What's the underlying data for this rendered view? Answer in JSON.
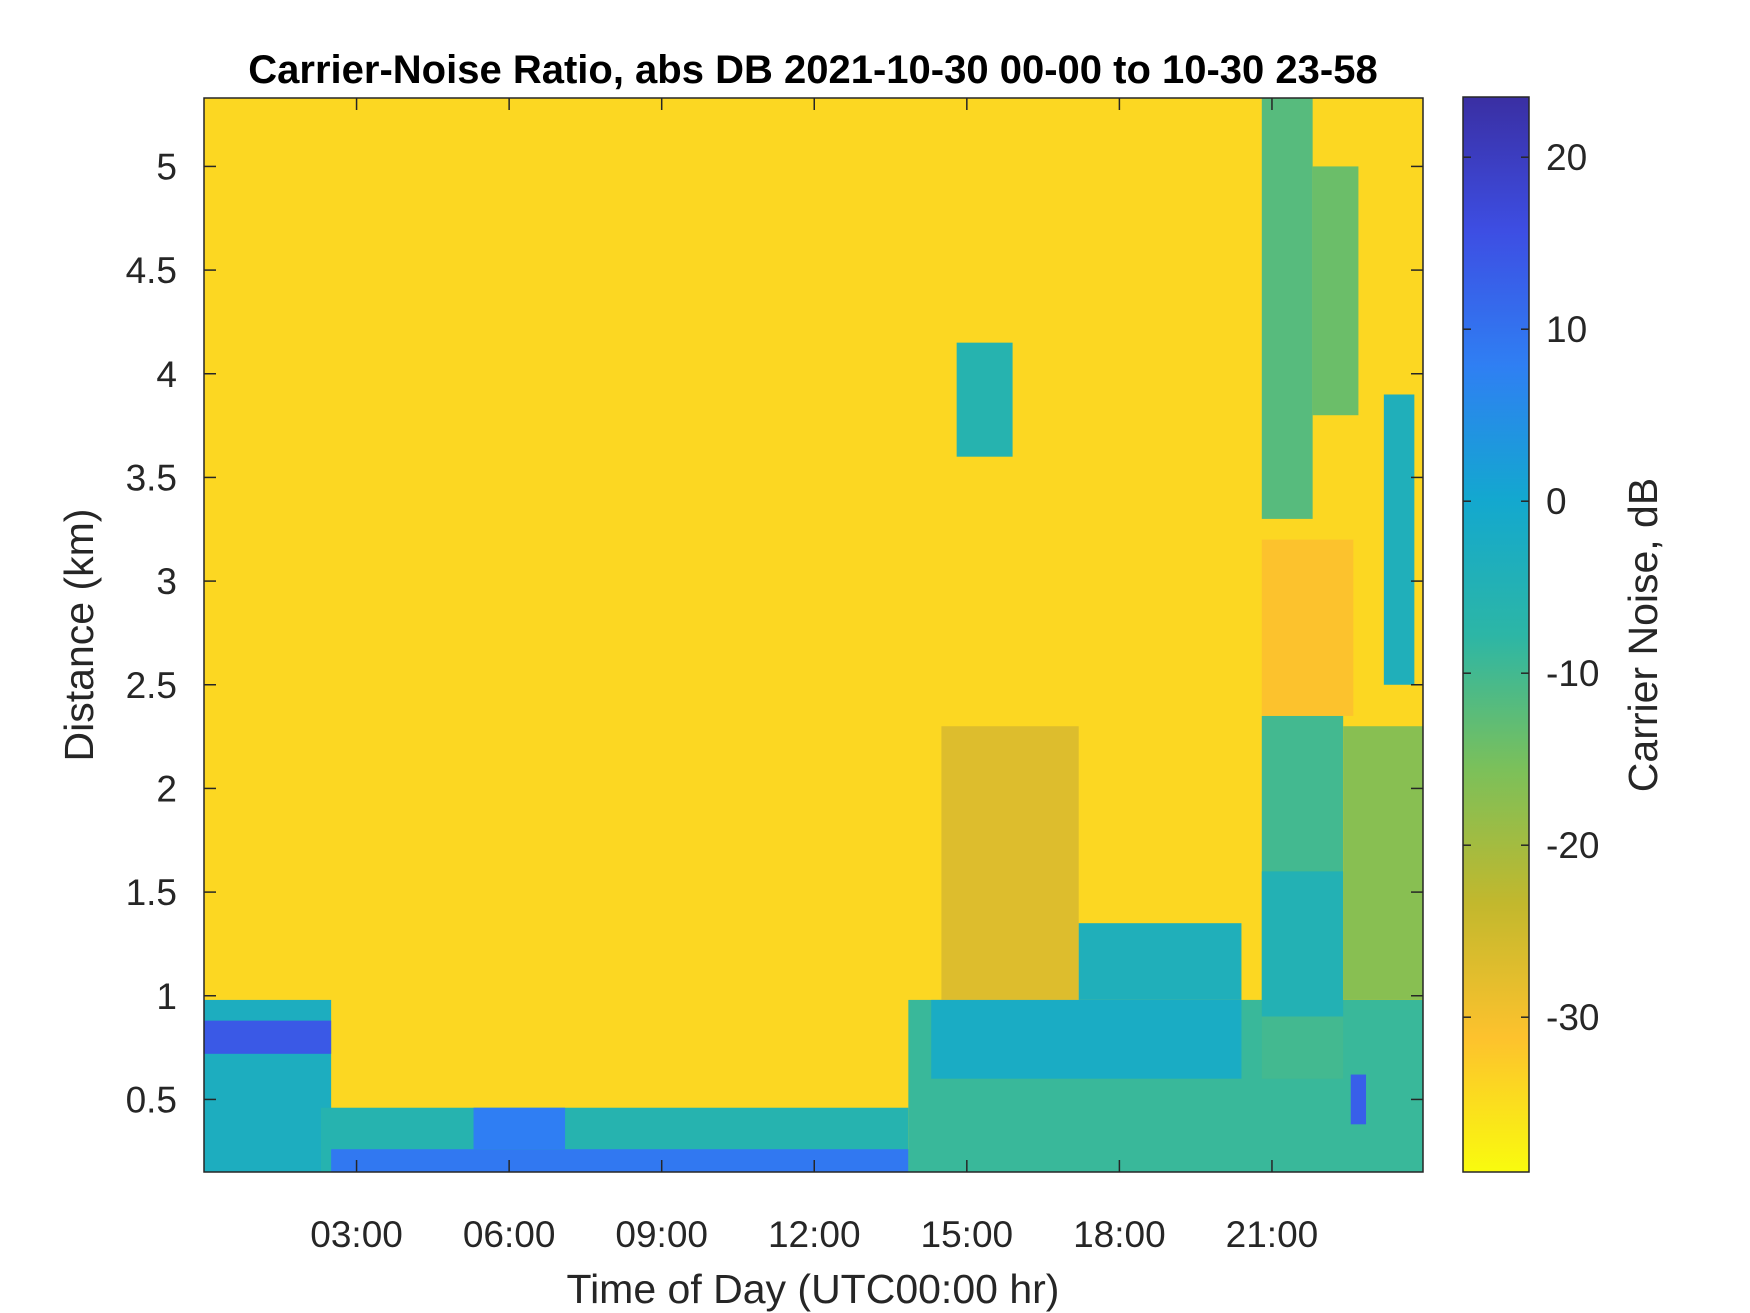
{
  "chart_data": {
    "type": "heatmap",
    "title": "Carrier-Noise Ratio, abs DB 2021-10-30 00-00 to 10-30 23-58",
    "xlabel": "Time of Day (UTC00:00 hr)",
    "ylabel": "Distance (km)",
    "colorbar_label": "Carrier Noise, dB",
    "xlim_hours": [
      0,
      23.97
    ],
    "ylim_km": [
      0.15,
      5.33
    ],
    "clim_db": [
      -39,
      23.5
    ],
    "x_ticks": [
      {
        "value": 3,
        "label": "03:00"
      },
      {
        "value": 6,
        "label": "06:00"
      },
      {
        "value": 9,
        "label": "09:00"
      },
      {
        "value": 12,
        "label": "12:00"
      },
      {
        "value": 15,
        "label": "15:00"
      },
      {
        "value": 18,
        "label": "18:00"
      },
      {
        "value": 21,
        "label": "21:00"
      }
    ],
    "y_ticks": [
      {
        "value": 0.5,
        "label": "0.5"
      },
      {
        "value": 1,
        "label": "1"
      },
      {
        "value": 1.5,
        "label": "1.5"
      },
      {
        "value": 2,
        "label": "2"
      },
      {
        "value": 2.5,
        "label": "2.5"
      },
      {
        "value": 3,
        "label": "3"
      },
      {
        "value": 3.5,
        "label": "3.5"
      },
      {
        "value": 4,
        "label": "4"
      },
      {
        "value": 4.5,
        "label": "4.5"
      },
      {
        "value": 5,
        "label": "5"
      }
    ],
    "colorbar_ticks": [
      {
        "value": 20,
        "label": "20"
      },
      {
        "value": 10,
        "label": "10"
      },
      {
        "value": 0,
        "label": "0"
      },
      {
        "value": -10,
        "label": "-10"
      },
      {
        "value": -20,
        "label": "-20"
      },
      {
        "value": -30,
        "label": "-30"
      }
    ],
    "colormap": "parula-reversed",
    "colormap_stops": [
      "#f9fb0e",
      "#fdc22d",
      "#c2b82d",
      "#7bc05a",
      "#2cb6a6",
      "#13a8cf",
      "#2f7ff3",
      "#3d4ee3",
      "#3a2fa3"
    ],
    "background_level_db": -34,
    "regions": [
      {
        "x": [
          0,
          2.5
        ],
        "y": [
          0.15,
          0.98
        ],
        "db": -3
      },
      {
        "x": [
          0,
          2.5
        ],
        "y": [
          0.72,
          0.88
        ],
        "db": 14
      },
      {
        "x": [
          2.3,
          13.85
        ],
        "y": [
          0.15,
          0.46
        ],
        "db": -6
      },
      {
        "x": [
          2.5,
          13.85
        ],
        "y": [
          0.15,
          0.26
        ],
        "db": 9
      },
      {
        "x": [
          5.3,
          7.1
        ],
        "y": [
          0.26,
          0.46
        ],
        "db": 8
      },
      {
        "x": [
          13.85,
          23.97
        ],
        "y": [
          0.15,
          0.98
        ],
        "db": -9
      },
      {
        "x": [
          14.5,
          17.2
        ],
        "y": [
          0.98,
          2.3
        ],
        "db": -27
      },
      {
        "x": [
          14.3,
          20.4
        ],
        "y": [
          0.6,
          0.98
        ],
        "db": -2
      },
      {
        "x": [
          17.2,
          20.4
        ],
        "y": [
          0.98,
          1.35
        ],
        "db": -4
      },
      {
        "x": [
          20.8,
          22.4
        ],
        "y": [
          0.6,
          2.35
        ],
        "db": -10
      },
      {
        "x": [
          20.8,
          22.4
        ],
        "y": [
          0.9,
          1.6
        ],
        "db": -5
      },
      {
        "x": [
          20.8,
          22.6
        ],
        "y": [
          2.35,
          3.2
        ],
        "db": -31
      },
      {
        "x": [
          22.4,
          23.97
        ],
        "y": [
          0.98,
          2.3
        ],
        "db": -17
      },
      {
        "x": [
          22.55,
          22.85
        ],
        "y": [
          0.38,
          0.62
        ],
        "db": 13
      },
      {
        "x": [
          14.8,
          15.9
        ],
        "y": [
          3.6,
          4.15
        ],
        "db": -6
      },
      {
        "x": [
          20.8,
          21.8
        ],
        "y": [
          3.3,
          5.33
        ],
        "db": -12
      },
      {
        "x": [
          21.8,
          22.7
        ],
        "y": [
          3.8,
          5.0
        ],
        "db": -14
      },
      {
        "x": [
          23.2,
          23.8
        ],
        "y": [
          2.5,
          3.9
        ],
        "db": -4
      }
    ]
  }
}
